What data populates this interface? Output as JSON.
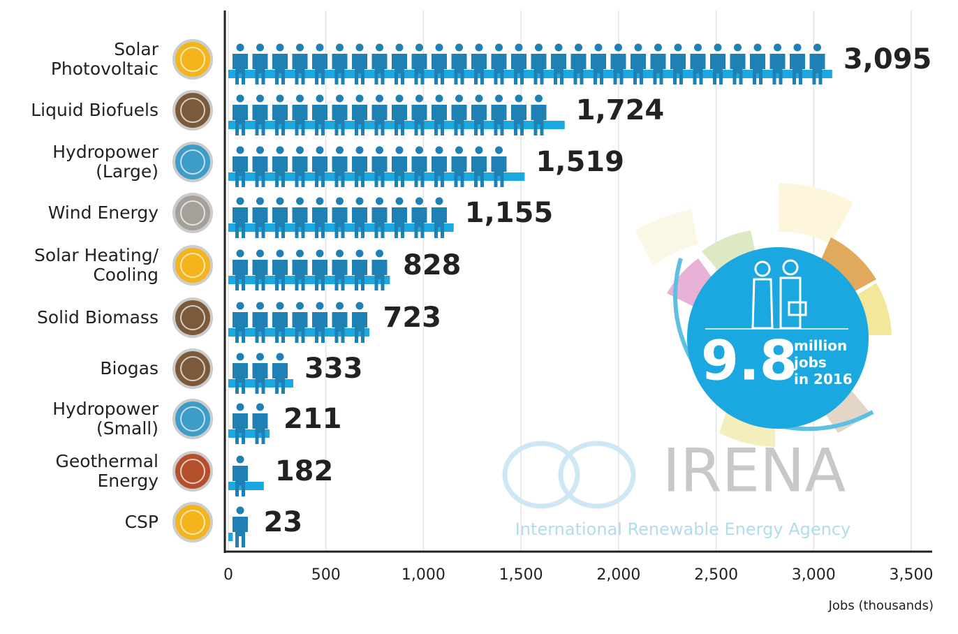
{
  "chart_data": {
    "type": "bar",
    "orientation": "horizontal",
    "categories": [
      "Solar\nPhotovoltaic",
      "Liquid Biofuels",
      "Hydropower\n(Large)",
      "Wind Energy",
      "Solar Heating/\nCooling",
      "Solid Biomass",
      "Biogas",
      "Hydropower\n(Small)",
      "Geothermal\nEnergy",
      "CSP"
    ],
    "values": [
      3095,
      1724,
      1519,
      1155,
      828,
      723,
      333,
      211,
      182,
      23
    ],
    "value_labels": [
      "3,095",
      "1,724",
      "1,519",
      "1,155",
      "828",
      "723",
      "333",
      "211",
      "182",
      "23"
    ],
    "color": "#1ba7e0",
    "icon_color": "#1f80b3",
    "xlim": [
      0,
      3500
    ],
    "xticks": [
      0,
      500,
      {
        "value": 1000,
        "label": "1,000"
      },
      {
        "value": 1500,
        "label": "1,500"
      },
      {
        "value": 2000,
        "label": "2,000"
      },
      {
        "value": 2500,
        "label": "2,500"
      },
      {
        "value": 3000,
        "label": "3,000"
      },
      {
        "value": 3500,
        "label": "3,500"
      }
    ],
    "x_label": "Jobs (thousands)",
    "grid": true,
    "annotations": {
      "total": "9.8",
      "total_text": "million\njobs\nin 2016",
      "logo": "IRENA",
      "logo_subtitle": "International Renewable Energy Agency"
    }
  }
}
